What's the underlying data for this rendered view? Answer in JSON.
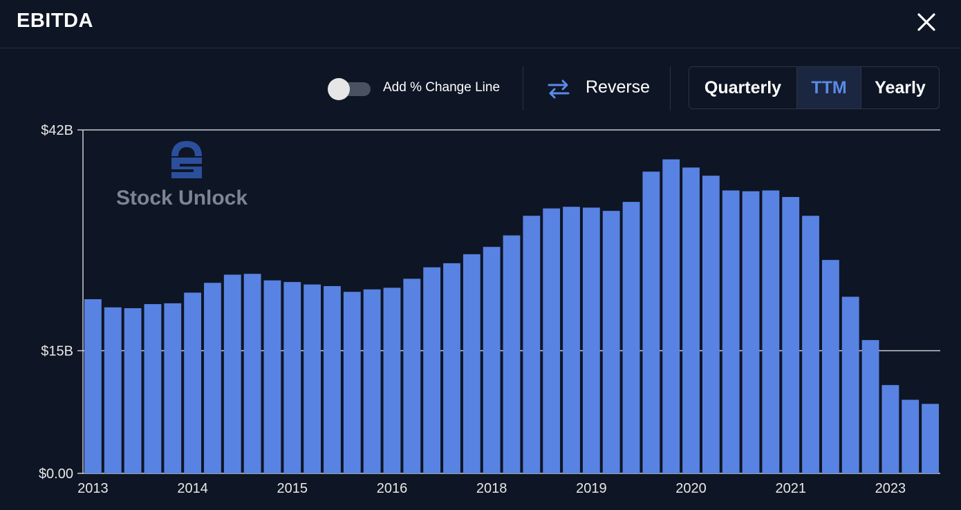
{
  "header": {
    "title": "EBITDA"
  },
  "toolbar": {
    "toggle_label": "Add % Change Line",
    "toggle_on": false,
    "reverse_label": "Reverse",
    "periods": [
      "Quarterly",
      "TTM",
      "Yearly"
    ],
    "selected_period": "TTM"
  },
  "watermark": {
    "text": "Stock Unlock"
  },
  "colors": {
    "background": "#0e1524",
    "bar": "#5883e3",
    "accent": "#5b8ae8",
    "grid": "#c8ccd2"
  },
  "chart_data": {
    "type": "bar",
    "title": "",
    "xlabel": "",
    "ylabel": "",
    "ylim": [
      0,
      42
    ],
    "y_ticks": [
      {
        "value": 0,
        "label": "$0.00"
      },
      {
        "value": 15,
        "label": "$15B"
      },
      {
        "value": 42,
        "label": "$42B"
      }
    ],
    "x_ticks": [
      {
        "index": 0,
        "label": "2013"
      },
      {
        "index": 5,
        "label": "2014"
      },
      {
        "index": 10,
        "label": "2015"
      },
      {
        "index": 15,
        "label": "2016"
      },
      {
        "index": 20,
        "label": "2018"
      },
      {
        "index": 25,
        "label": "2019"
      },
      {
        "index": 30,
        "label": "2020"
      },
      {
        "index": 35,
        "label": "2021"
      },
      {
        "index": 40,
        "label": "2023"
      }
    ],
    "grid": true,
    "values": [
      21.3,
      20.3,
      20.2,
      20.7,
      20.8,
      22.1,
      23.3,
      24.3,
      24.4,
      23.6,
      23.4,
      23.1,
      22.9,
      22.2,
      22.5,
      22.7,
      23.8,
      25.2,
      25.7,
      26.8,
      27.7,
      29.1,
      31.5,
      32.4,
      32.6,
      32.5,
      32.1,
      33.2,
      36.9,
      38.4,
      37.4,
      36.4,
      34.6,
      34.5,
      34.6,
      33.8,
      31.5,
      26.1,
      21.6,
      16.3,
      10.8,
      9.0,
      8.5
    ]
  }
}
